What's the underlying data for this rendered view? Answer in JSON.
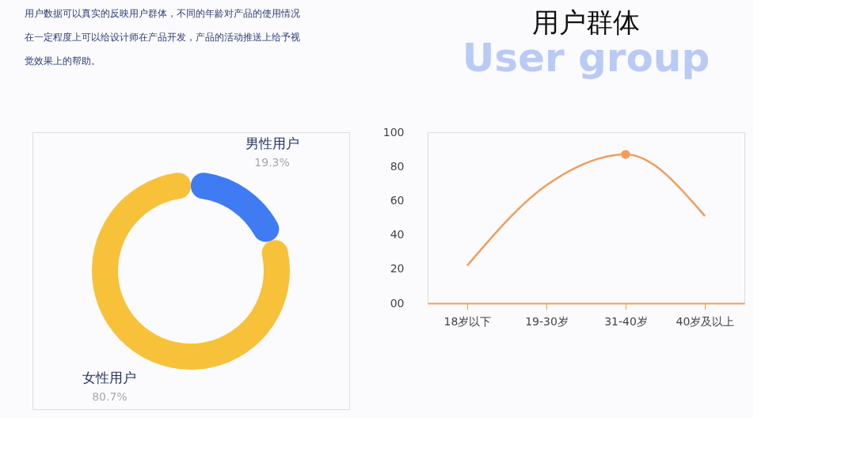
{
  "chart_data": [
    {
      "type": "donut",
      "categories": [
        "男性用户",
        "女性用户"
      ],
      "values": [
        19.3,
        80.7
      ],
      "colors": [
        "#3f7bf2",
        "#f7c23a"
      ],
      "value_labels": [
        "19.3%",
        "80.7%"
      ],
      "annotations": [
        "用户数据可以真实的反映用户群体，不同的年龄对产品的使用情况在一定程度上可以给设计师在产品开发，产品的活动推送上给予视觉效果上的帮助。"
      ]
    },
    {
      "type": "line",
      "title": "用户群体",
      "subtitle": "User group",
      "categories": [
        "18岁以下",
        "19-30岁",
        "31-40岁",
        "40岁及以上"
      ],
      "ylim": [
        0,
        100
      ],
      "yticks": [
        {
          "value": 0,
          "label": "00"
        },
        20,
        40,
        60,
        80,
        100
      ],
      "grid": false,
      "series": [
        {
          "type": "line",
          "color": "#f39c5a",
          "values": [
            22,
            69,
            87,
            51
          ]
        },
        {
          "type": "scatter",
          "color": "#f39c5a",
          "values": [
            null,
            null,
            87,
            null
          ]
        }
      ]
    }
  ]
}
